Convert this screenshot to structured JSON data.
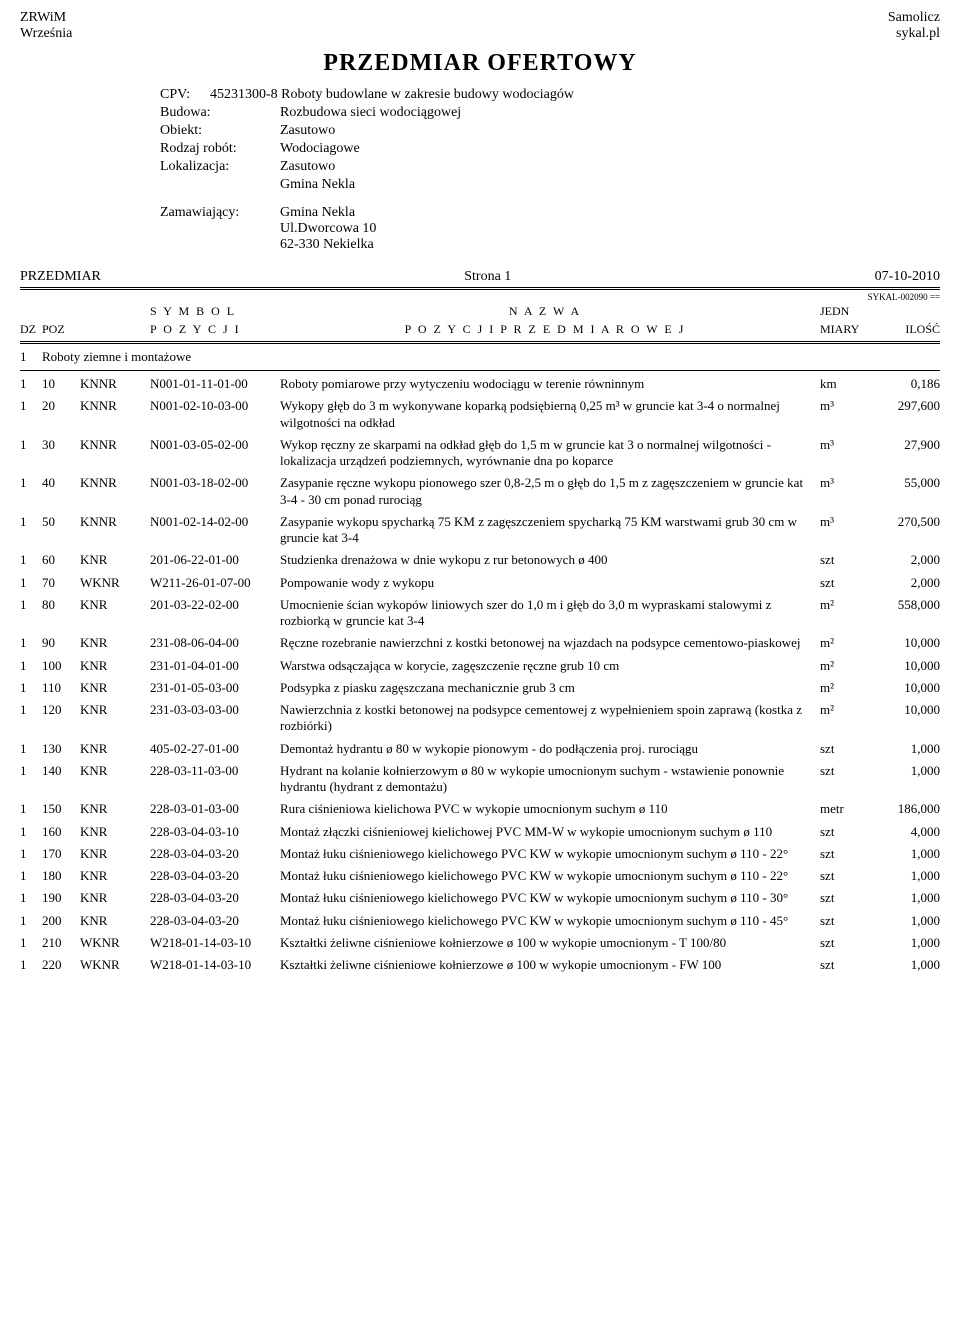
{
  "header": {
    "left_line1": "ZRWiM",
    "left_line2": "Września",
    "right_line1": "Samolicz",
    "right_line2": "sykal.pl"
  },
  "title": "PRZEDMIAR  OFERTOWY",
  "meta": {
    "cpv_label": "CPV:",
    "cpv_value": "45231300-8 Roboty budowlane w zakresie budowy wodociagów",
    "rows": [
      {
        "label": "Budowa:",
        "value": "Rozbudowa sieci wodociągowej"
      },
      {
        "label": "Obiekt:",
        "value": "Zasutowo"
      },
      {
        "label": "Rodzaj robót:",
        "value": "Wodociagowe"
      },
      {
        "label": "Lokalizacja:",
        "value": "Zasutowo"
      },
      {
        "label": "",
        "value": "Gmina Nekla"
      }
    ],
    "zamawiajacy_label": "Zamawiający:",
    "zamawiajacy_lines": [
      "Gmina Nekla",
      "Ul.Dworcowa 10",
      "62-330 Nekielka"
    ]
  },
  "page": {
    "przedmiar": "PRZEDMIAR",
    "strona": "Strona 1",
    "date": "07-10-2010",
    "sykal": "SYKAL-002090"
  },
  "col_headers": {
    "dz": "DZ",
    "poz": "POZ",
    "symbol_l1": "S Y M B O L",
    "symbol_l2": "P O Z Y C J I",
    "nazwa_l1": "N A Z W A",
    "nazwa_l2": "P O Z Y C J I   P R Z E D M I A R O W E J",
    "jedn_l1": "JEDN",
    "jedn_l2": "MIARY",
    "ilosc": "ILOŚĆ"
  },
  "section": {
    "dz": "1",
    "title": "Roboty ziemne i montażowe"
  },
  "rows": [
    {
      "dz": "1",
      "poz": "10",
      "kod": "KNNR",
      "sym": "N001-01-11-01-00",
      "nazwa": "Roboty pomiarowe przy wytyczeniu wodociągu w terenie równinnym",
      "jedn": "km",
      "ilosc": "0,186"
    },
    {
      "dz": "1",
      "poz": "20",
      "kod": "KNNR",
      "sym": "N001-02-10-03-00",
      "nazwa": "Wykopy głęb do 3 m wykonywane koparką podsiębierną 0,25 m³ w gruncie kat 3-4 o normalnej wilgotności na odkład",
      "jedn": "m³",
      "ilosc": "297,600"
    },
    {
      "dz": "1",
      "poz": "30",
      "kod": "KNNR",
      "sym": "N001-03-05-02-00",
      "nazwa": "Wykop ręczny ze skarpami na odkład głęb do 1,5 m w gruncie kat 3 o normalnej wilgotności - lokalizacja urządzeń podziemnych, wyrównanie dna po koparce",
      "jedn": "m³",
      "ilosc": "27,900"
    },
    {
      "dz": "1",
      "poz": "40",
      "kod": "KNNR",
      "sym": "N001-03-18-02-00",
      "nazwa": "Zasypanie ręczne wykopu pionowego szer 0,8-2,5 m o głęb do 1,5 m z zagęszczeniem w gruncie kat 3-4 - 30 cm ponad rurociąg",
      "jedn": "m³",
      "ilosc": "55,000"
    },
    {
      "dz": "1",
      "poz": "50",
      "kod": "KNNR",
      "sym": "N001-02-14-02-00",
      "nazwa": "Zasypanie wykopu spycharką 75 KM z zagęszczeniem spycharką 75 KM warstwami grub 30 cm w gruncie kat 3-4",
      "jedn": "m³",
      "ilosc": "270,500"
    },
    {
      "dz": "1",
      "poz": "60",
      "kod": "KNR",
      "sym": "201-06-22-01-00",
      "nazwa": "Studzienka drenażowa w dnie wykopu z rur betonowych ø 400",
      "jedn": "szt",
      "ilosc": "2,000"
    },
    {
      "dz": "1",
      "poz": "70",
      "kod": "WKNR",
      "sym": "W211-26-01-07-00",
      "nazwa": "Pompowanie wody z wykopu",
      "jedn": "szt",
      "ilosc": "2,000"
    },
    {
      "dz": "1",
      "poz": "80",
      "kod": "KNR",
      "sym": "201-03-22-02-00",
      "nazwa": "Umocnienie ścian wykopów liniowych szer do 1,0 m i głęb do 3,0 m wypraskami stalowymi z rozbiorką w gruncie kat 3-4",
      "jedn": "m²",
      "ilosc": "558,000"
    },
    {
      "dz": "1",
      "poz": "90",
      "kod": "KNR",
      "sym": "231-08-06-04-00",
      "nazwa": "Ręczne rozebranie nawierzchni z kostki betonowej na wjazdach na podsypce cementowo-piaskowej",
      "jedn": "m²",
      "ilosc": "10,000"
    },
    {
      "dz": "1",
      "poz": "100",
      "kod": "KNR",
      "sym": "231-01-04-01-00",
      "nazwa": "Warstwa odsączająca w korycie, zagęszczenie ręczne grub 10 cm",
      "jedn": "m²",
      "ilosc": "10,000"
    },
    {
      "dz": "1",
      "poz": "110",
      "kod": "KNR",
      "sym": "231-01-05-03-00",
      "nazwa": "Podsypka z piasku zagęszczana mechanicznie grub 3 cm",
      "jedn": "m²",
      "ilosc": "10,000"
    },
    {
      "dz": "1",
      "poz": "120",
      "kod": "KNR",
      "sym": "231-03-03-03-00",
      "nazwa": "Nawierzchnia z kostki betonowej  na podsypce cementowej z wypełnieniem spoin zaprawą (kostka z rozbiórki)",
      "jedn": "m²",
      "ilosc": "10,000"
    },
    {
      "dz": "1",
      "poz": "130",
      "kod": "KNR",
      "sym": "405-02-27-01-00",
      "nazwa": "Demontaż hydrantu ø 80 w wykopie pionowym - do podłączenia proj. rurociągu",
      "jedn": "szt",
      "ilosc": "1,000"
    },
    {
      "dz": "1",
      "poz": "140",
      "kod": "KNR",
      "sym": "228-03-11-03-00",
      "nazwa": "Hydrant na kolanie kołnierzowym ø 80 w wykopie umocnionym suchym - wstawienie ponownie hydrantu (hydrant z demontażu)",
      "jedn": "szt",
      "ilosc": "1,000"
    },
    {
      "dz": "1",
      "poz": "150",
      "kod": "KNR",
      "sym": "228-03-01-03-00",
      "nazwa": "Rura ciśnieniowa kielichowa PVC w wykopie umocnionym suchym ø 110",
      "jedn": "metr",
      "ilosc": "186,000"
    },
    {
      "dz": "1",
      "poz": "160",
      "kod": "KNR",
      "sym": "228-03-04-03-10",
      "nazwa": "Montaż złączki ciśnieniowej kielichowej PVC MM-W w wykopie umocnionym suchym ø 110",
      "jedn": "szt",
      "ilosc": "4,000"
    },
    {
      "dz": "1",
      "poz": "170",
      "kod": "KNR",
      "sym": "228-03-04-03-20",
      "nazwa": "Montaż łuku ciśnieniowego kielichowego PVC KW w wykopie umocnionym suchym ø 110 - 22°",
      "jedn": "szt",
      "ilosc": "1,000"
    },
    {
      "dz": "1",
      "poz": "180",
      "kod": "KNR",
      "sym": "228-03-04-03-20",
      "nazwa": "Montaż łuku ciśnieniowego kielichowego PVC KW w wykopie umocnionym suchym ø 110 - 22°",
      "jedn": "szt",
      "ilosc": "1,000"
    },
    {
      "dz": "1",
      "poz": "190",
      "kod": "KNR",
      "sym": "228-03-04-03-20",
      "nazwa": "Montaż łuku ciśnieniowego kielichowego PVC KW w wykopie umocnionym suchym ø 110 - 30°",
      "jedn": "szt",
      "ilosc": "1,000"
    },
    {
      "dz": "1",
      "poz": "200",
      "kod": "KNR",
      "sym": "228-03-04-03-20",
      "nazwa": "Montaż łuku ciśnieniowego kielichowego PVC KW w wykopie umocnionym suchym ø 110 - 45°",
      "jedn": "szt",
      "ilosc": "1,000"
    },
    {
      "dz": "1",
      "poz": "210",
      "kod": "WKNR",
      "sym": "W218-01-14-03-10",
      "nazwa": "Kształtki żeliwne ciśnieniowe kołnierzowe ø 100 w wykopie umocnionym - T 100/80",
      "jedn": "szt",
      "ilosc": "1,000"
    },
    {
      "dz": "1",
      "poz": "220",
      "kod": "WKNR",
      "sym": "W218-01-14-03-10",
      "nazwa": "Kształtki żeliwne ciśnieniowe kołnierzowe ø 100 w wykopie umocnionym - FW 100",
      "jedn": "szt",
      "ilosc": "1,000"
    }
  ]
}
